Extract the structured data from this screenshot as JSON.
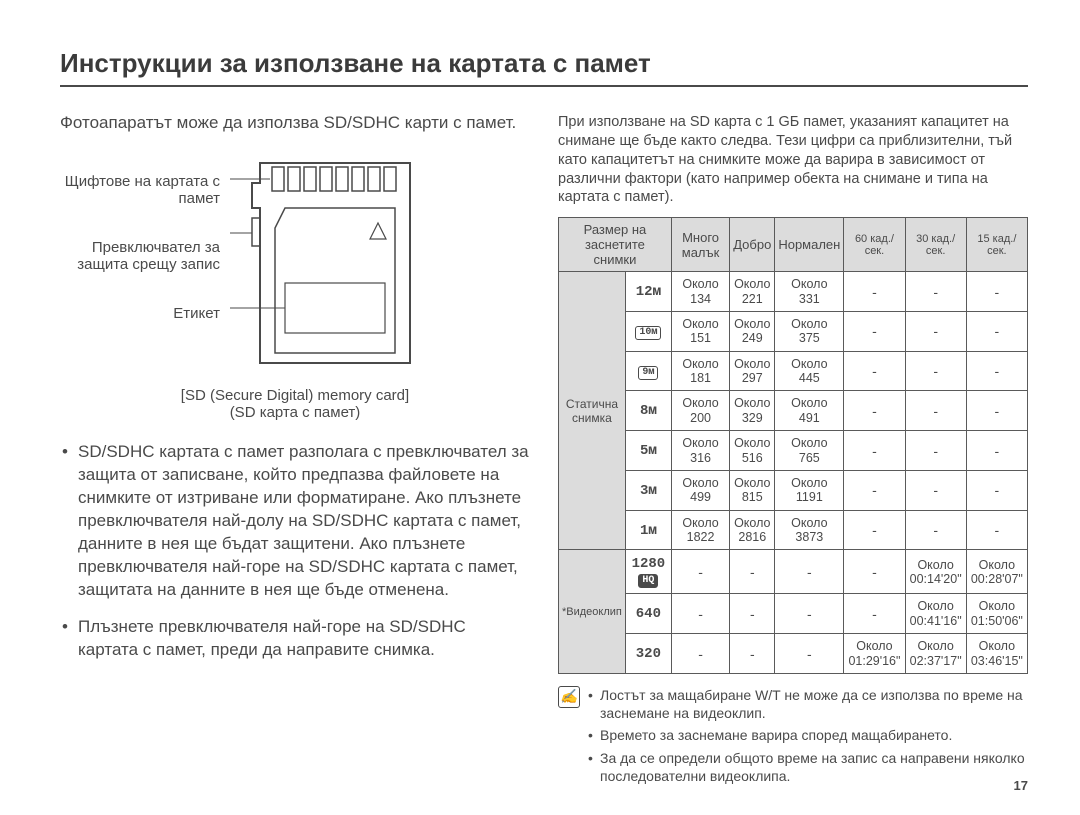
{
  "page": {
    "title": "Инструкции за използване на картата с памет",
    "number": "17"
  },
  "left": {
    "intro": "Фотоапаратът може да използва SD/SDHC карти с памет.",
    "labels": {
      "pins": "Щифтове на картата с памет",
      "switch": "Превключвател за защита срещу запис",
      "label": "Етикет"
    },
    "caption1": "[SD (Secure Digital) memory card]",
    "caption2": "(SD карта с памет)",
    "bullets": [
      "SD/SDHC картата с памет разполага с превключвател за защита от записване, който предпазва файловете на снимките от изтриване или форматиране. Ако плъзнете превключвателя най-долу на SD/SDHC картата с памет, данните в нея ще бъдат защитени. Ако плъзнете превключвателя най-горе на SD/SDHC картата с памет, защитата на данните в нея ще бъде отменена.",
      "Плъзнете превключвателя най-горе на SD/SDHC картата с памет, преди да направите снимка."
    ]
  },
  "right": {
    "intro": "При използване на SD карта с 1 GБ памет, указаният капацитет на снимане ще бъде както следва. Тези цифри са приблизителни, тъй като капацитетът на снимките може да варира в зависимост от различни фактори (като например обекта на снимане и типа на картата с памет).",
    "headers": {
      "recsize": "Размер на заснетите снимки",
      "superfine": "Много малък",
      "fine": "Добро",
      "normal": "Нормален",
      "fps60": "60 кад./сек.",
      "fps30": "30 кад./сек.",
      "fps15": "15 кад./сек."
    },
    "approx": "Около",
    "rowgroups": {
      "still": "Статична снимка",
      "video": "*Видеоклип"
    },
    "still": [
      {
        "size": "12ᴍ",
        "pill": false,
        "sf": "134",
        "f": "221",
        "n": "331"
      },
      {
        "size": "10ᴍ",
        "pill": true,
        "sf": "151",
        "f": "249",
        "n": "375"
      },
      {
        "size": "9ᴍ",
        "pill": true,
        "sf": "181",
        "f": "297",
        "n": "445"
      },
      {
        "size": "8ᴍ",
        "pill": false,
        "sf": "200",
        "f": "329",
        "n": "491"
      },
      {
        "size": "5ᴍ",
        "pill": false,
        "sf": "316",
        "f": "516",
        "n": "765"
      },
      {
        "size": "3ᴍ",
        "pill": false,
        "sf": "499",
        "f": "815",
        "n": "1191"
      },
      {
        "size": "1ᴍ",
        "pill": false,
        "sf": "1822",
        "f": "2816",
        "n": "3873"
      }
    ],
    "video": [
      {
        "size": "1280",
        "hq": true,
        "fps60": "-",
        "fps30": "00:14'20\"",
        "fps15": "00:28'07\""
      },
      {
        "size": "640",
        "hq": false,
        "fps60": "-",
        "fps30": "00:41'16\"",
        "fps15": "01:50'06\""
      },
      {
        "size": "320",
        "hq": false,
        "fps60": "01:29'16\"",
        "fps30": "02:37'17\"",
        "fps15": "03:46'15\""
      }
    ],
    "notes": [
      "Лостът за мащабиране W/T не може да се използва по време на заснемане на видеоклип.",
      "Времето за заснемане варира според мащабирането.",
      "За да се определи общото време на запис са направени няколко последователни видеоклипа."
    ]
  },
  "colors": {
    "text": "#4a4a4a",
    "header_bg": "#dcdcdc",
    "border": "#5a5a5a",
    "bg": "#ffffff"
  }
}
